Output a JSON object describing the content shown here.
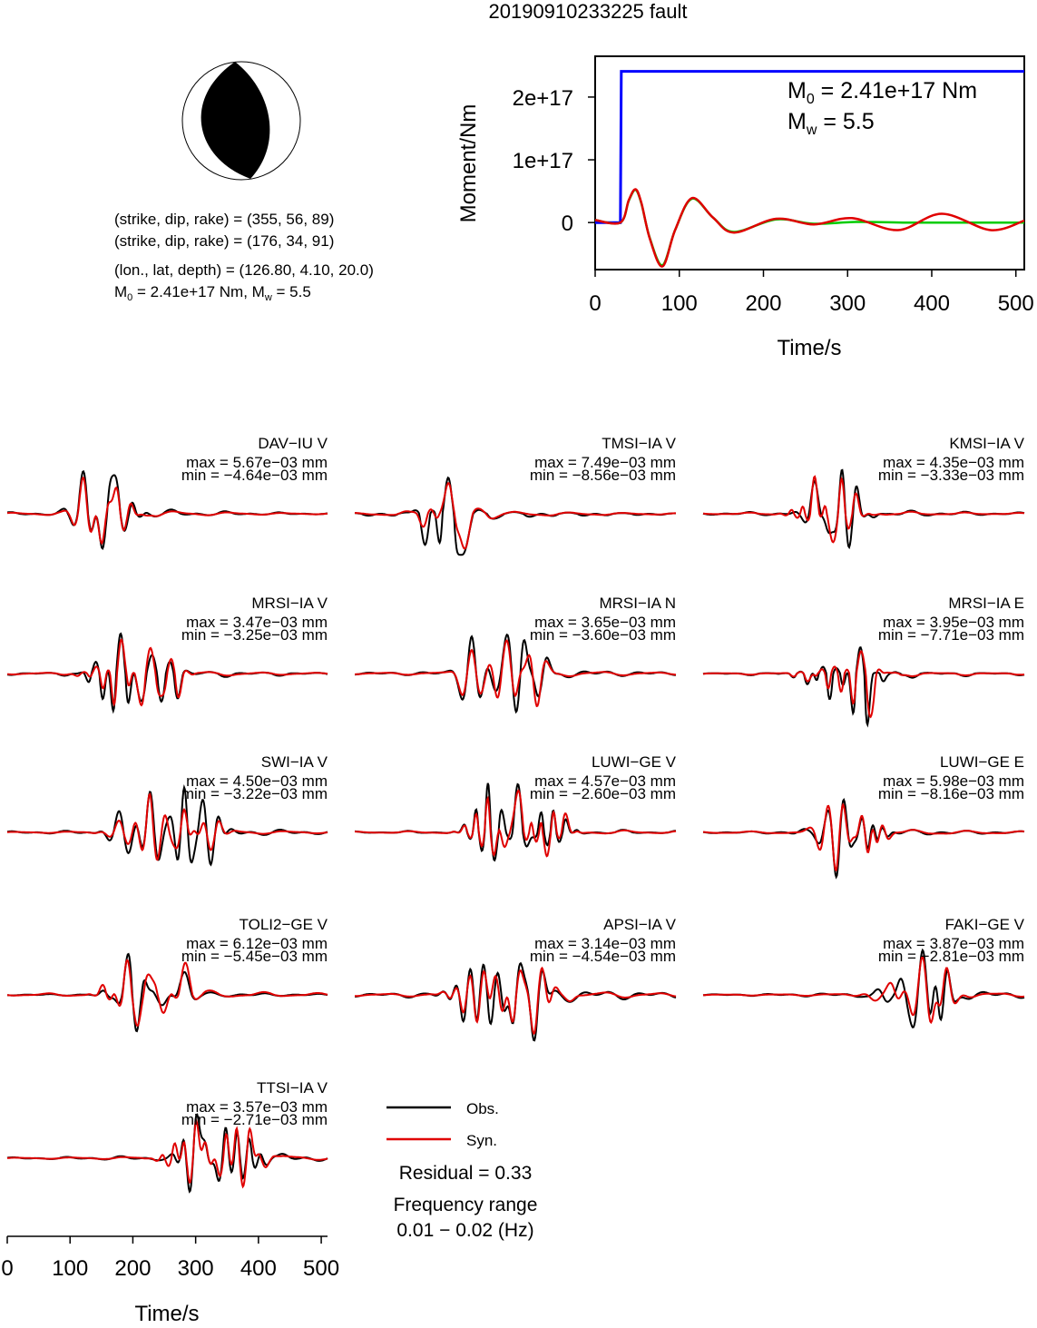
{
  "title": "20190910233225 fault",
  "mechanism": {
    "solution_1": "(strike, dip, rake) = (355, 56, 89)",
    "solution_2": "(strike, dip, rake) = (176, 34, 91)",
    "location": "(lon., lat, depth) = (126.80, 4.10, 20.0)",
    "moment_line": {
      "m0_prefix": "M",
      "m0_sub": "0",
      "m0_value": " = 2.41e+17 Nm, M",
      "mw_sub": "w",
      "mw_value": " = 5.5"
    },
    "colors": {
      "fill": "#000000",
      "outline": "#000000"
    }
  },
  "chart_data": [
    {
      "type": "line",
      "id": "moment-function",
      "xlabel": "Time/s",
      "ylabel": "Moment/Nm",
      "xlim": [
        0,
        510
      ],
      "ylim": [
        -7.5e+16,
        2.65e+17
      ],
      "xticks": [
        0,
        100,
        200,
        300,
        400,
        500
      ],
      "xtick_labels": [
        "0",
        "100",
        "200",
        "300",
        "400",
        "500"
      ],
      "yticks": [
        0,
        1e+17,
        2e+17
      ],
      "ytick_labels": [
        "0",
        "1e+17",
        "2e+17"
      ],
      "annotation_m0": {
        "prefix": "M",
        "sub": "0",
        "value": " = 2.41e+17 Nm"
      },
      "annotation_mw": {
        "prefix": "M",
        "sub": "w",
        "value": " = 5.5"
      },
      "series": [
        {
          "id": "cumulative",
          "color": "#0000ff",
          "x": [
            0,
            30,
            31,
            510
          ],
          "y": [
            0,
            0,
            2.41e+17,
            2.41e+17
          ]
        },
        {
          "id": "filtered-green",
          "color": "#00cc00",
          "x": [
            0,
            30,
            40,
            48,
            55,
            65,
            80,
            95,
            115,
            140,
            165,
            215,
            260,
            310,
            370,
            430,
            470,
            510
          ],
          "y": [
            4000000000000000.0,
            0,
            3.5e+16,
            5.2e+16,
            3e+16,
            -2.5e+16,
            -6.8e+16,
            -1.2e+16,
            3.8e+16,
            8000000000000000.0,
            -1.5e+16,
            5000000000000000.0,
            -2000000000000000.0,
            1000000000000000.0,
            0,
            0,
            0,
            0
          ]
        },
        {
          "id": "filtered-red",
          "color": "#e00000",
          "x": [
            0,
            30,
            40,
            48,
            55,
            65,
            80,
            95,
            115,
            140,
            165,
            215,
            260,
            305,
            360,
            412,
            470,
            510
          ],
          "y": [
            4000000000000000.0,
            0,
            3.6e+16,
            5.3e+16,
            3.1e+16,
            -2.6e+16,
            -7e+16,
            -1.2e+16,
            3.9e+16,
            8000000000000000.0,
            -1.6e+16,
            6000000000000000.0,
            -3000000000000000.0,
            7000000000000000.0,
            -1.2e+16,
            1.4e+16,
            -1.2e+16,
            3000000000000000.0
          ]
        }
      ]
    },
    {
      "type": "line",
      "id": "waveforms",
      "xlabel": "Time/s",
      "xlim": [
        0,
        510
      ],
      "xticks": [
        0,
        100,
        200,
        300,
        400,
        500
      ],
      "xtick_labels": [
        "0",
        "100",
        "200",
        "300",
        "400",
        "500"
      ],
      "legend": {
        "obs": "Obs.",
        "syn": "Syn.",
        "placement": "bottom-center"
      },
      "residual": "Residual = 0.33",
      "frequency_title": "Frequency range",
      "frequency_value": "0.01 − 0.02 (Hz)",
      "colors": {
        "obs": "#000000",
        "syn": "#e00000"
      },
      "panels": [
        {
          "station": "DAV−IU V",
          "max": "max = 5.67e−03 mm",
          "min": "min = −4.64e−03 mm",
          "obs_max": 0.00567,
          "obs_min": -0.00464,
          "seed": 1,
          "center": 150,
          "spread": 45,
          "decay": 160,
          "noise": 0.18
        },
        {
          "station": "TMSI−IA V",
          "max": "max = 7.49e−03 mm",
          "min": "min = −8.56e−03 mm",
          "obs_max": 0.00749,
          "obs_min": -0.00856,
          "seed": 2,
          "center": 145,
          "spread": 35,
          "decay": 200,
          "noise": 0.12
        },
        {
          "station": "KMSI−IA V",
          "max": "max = 4.35e−03 mm",
          "min": "min = −3.33e−03 mm",
          "obs_max": 0.00435,
          "obs_min": -0.00333,
          "seed": 3,
          "center": 195,
          "spread": 40,
          "decay": 200,
          "noise": 0.15
        },
        {
          "station": "MRSI−IA V",
          "max": "max = 3.47e−03 mm",
          "min": "min = −3.25e−03 mm",
          "obs_max": 0.00347,
          "obs_min": -0.00325,
          "seed": 4,
          "center": 210,
          "spread": 70,
          "decay": 200,
          "noise": 0.14
        },
        {
          "station": "MRSI−IA N",
          "max": "max = 3.65e−03 mm",
          "min": "min = −3.60e−03 mm",
          "obs_max": 0.00365,
          "obs_min": -0.0036,
          "seed": 5,
          "center": 235,
          "spread": 70,
          "decay": 200,
          "noise": 0.15
        },
        {
          "station": "MRSI−IA E",
          "max": "max = 3.95e−03 mm",
          "min": "min = −7.71e−03 mm",
          "obs_max": 0.00395,
          "obs_min": -0.00771,
          "seed": 6,
          "center": 230,
          "spread": 60,
          "decay": 200,
          "noise": 0.1
        },
        {
          "station": "SWI−IA V",
          "max": "max = 4.50e−03 mm",
          "min": "min = −3.22e−03 mm",
          "obs_max": 0.0045,
          "obs_min": -0.00322,
          "seed": 7,
          "center": 260,
          "spread": 75,
          "decay": 200,
          "noise": 0.12
        },
        {
          "station": "LUWI−GE V",
          "max": "max = 4.57e−03 mm",
          "min": "min = −2.60e−03 mm",
          "obs_max": 0.00457,
          "obs_min": -0.0026,
          "seed": 8,
          "center": 250,
          "spread": 70,
          "decay": 200,
          "noise": 0.12
        },
        {
          "station": "LUWI−GE E",
          "max": "max = 5.98e−03 mm",
          "min": "min = −8.16e−03 mm",
          "obs_max": 0.00598,
          "obs_min": -0.00816,
          "seed": 9,
          "center": 240,
          "spread": 60,
          "decay": 200,
          "noise": 0.18
        },
        {
          "station": "TOLI2−GE V",
          "max": "max = 6.12e−03 mm",
          "min": "min = −5.45e−03 mm",
          "obs_max": 0.00612,
          "obs_min": -0.00545,
          "seed": 10,
          "center": 235,
          "spread": 65,
          "decay": 200,
          "noise": 0.12
        },
        {
          "station": "APSI−IA V",
          "max": "max = 3.14e−03 mm",
          "min": "min = −4.54e−03 mm",
          "obs_max": 0.00314,
          "obs_min": -0.00454,
          "seed": 11,
          "center": 250,
          "spread": 80,
          "decay": 200,
          "noise": 0.2
        },
        {
          "station": "FAKI−GE V",
          "max": "max = 3.87e−03 mm",
          "min": "min = −2.81e−03 mm",
          "obs_max": 0.00387,
          "obs_min": -0.00281,
          "seed": 12,
          "center": 340,
          "spread": 60,
          "decay": 200,
          "noise": 0.2
        },
        {
          "station": "TTSI−IA V",
          "max": "max = 3.57e−03 mm",
          "min": "min = −2.71e−03 mm",
          "obs_max": 0.00357,
          "obs_min": -0.00271,
          "seed": 13,
          "center": 330,
          "spread": 80,
          "decay": 200,
          "noise": 0.16
        }
      ]
    }
  ]
}
